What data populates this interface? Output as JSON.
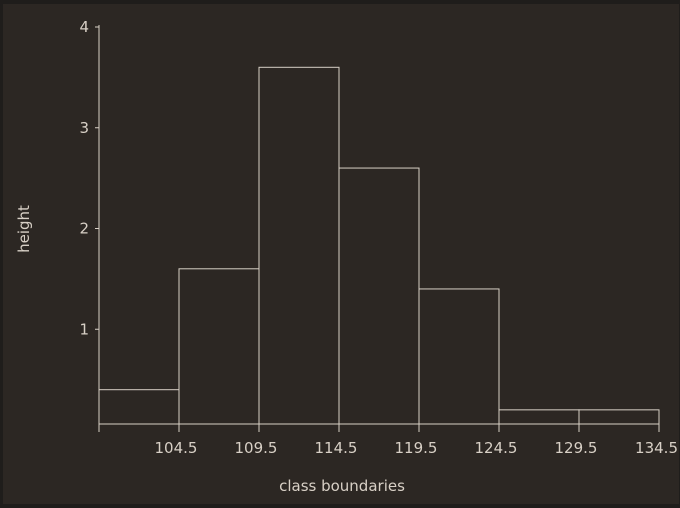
{
  "chart_data": {
    "type": "bar",
    "title": "",
    "xlabel": "class boundaries",
    "ylabel": "height",
    "bins": [
      {
        "from": 99.5,
        "to": 104.5,
        "value": 0.4
      },
      {
        "from": 104.5,
        "to": 109.5,
        "value": 1.6
      },
      {
        "from": 109.5,
        "to": 114.5,
        "value": 3.6
      },
      {
        "from": 114.5,
        "to": 119.5,
        "value": 2.6
      },
      {
        "from": 119.5,
        "to": 124.5,
        "value": 1.4
      },
      {
        "from": 124.5,
        "to": 129.5,
        "value": 0.2
      },
      {
        "from": 129.5,
        "to": 134.5,
        "value": 0.2
      }
    ],
    "x_ticks": [
      "104.5",
      "109.5",
      "114.5",
      "119.5",
      "124.5",
      "129.5",
      "134.5"
    ],
    "y_ticks": [
      "1",
      "2",
      "3",
      "4"
    ],
    "xlim": [
      99.5,
      134.5
    ],
    "ylim": [
      0,
      4
    ],
    "grid": false,
    "colors": {
      "background": "#2c2723",
      "foreground": "#d8d0c6"
    }
  }
}
